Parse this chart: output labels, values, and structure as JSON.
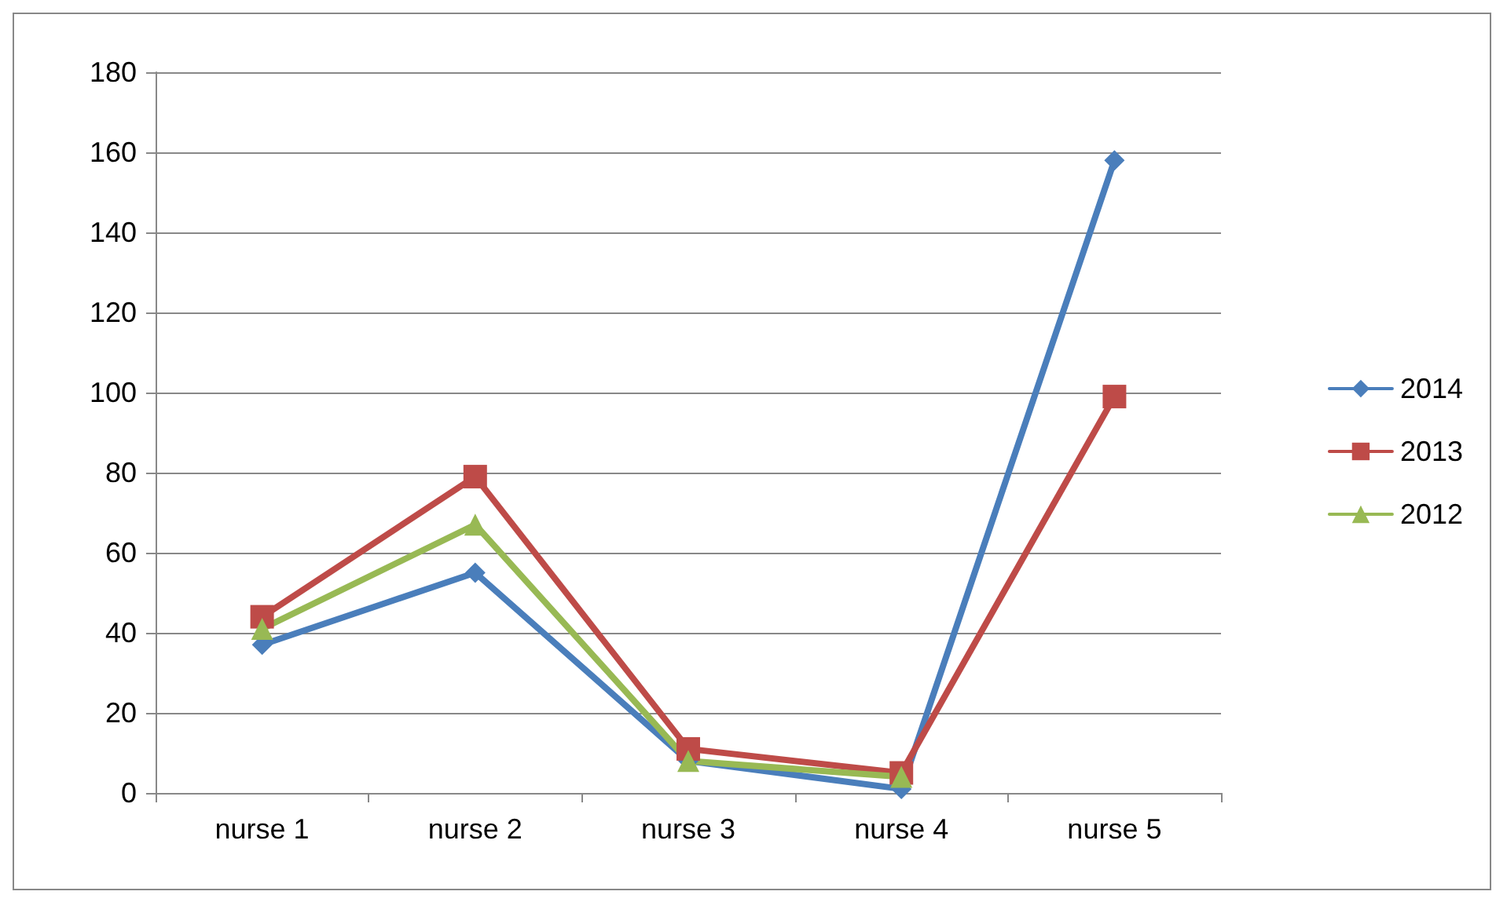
{
  "chart_data": {
    "type": "line",
    "categories": [
      "nurse 1",
      "nurse 2",
      "nurse 3",
      "nurse 4",
      "nurse 5"
    ],
    "series": [
      {
        "name": "2014",
        "color": "#4a7ebb",
        "marker": "diamond",
        "values": [
          37,
          55,
          8,
          1,
          158
        ]
      },
      {
        "name": "2013",
        "color": "#be4b48",
        "marker": "square",
        "values": [
          44,
          79,
          11,
          5,
          99
        ]
      },
      {
        "name": "2012",
        "color": "#98b954",
        "marker": "triangle",
        "values": [
          41,
          67,
          8,
          4,
          null
        ]
      }
    ],
    "ylim": [
      0,
      180
    ],
    "yticks": [
      0,
      20,
      40,
      60,
      80,
      100,
      120,
      140,
      160,
      180
    ],
    "grid": "y",
    "legend": "right",
    "line_style": "solid"
  }
}
